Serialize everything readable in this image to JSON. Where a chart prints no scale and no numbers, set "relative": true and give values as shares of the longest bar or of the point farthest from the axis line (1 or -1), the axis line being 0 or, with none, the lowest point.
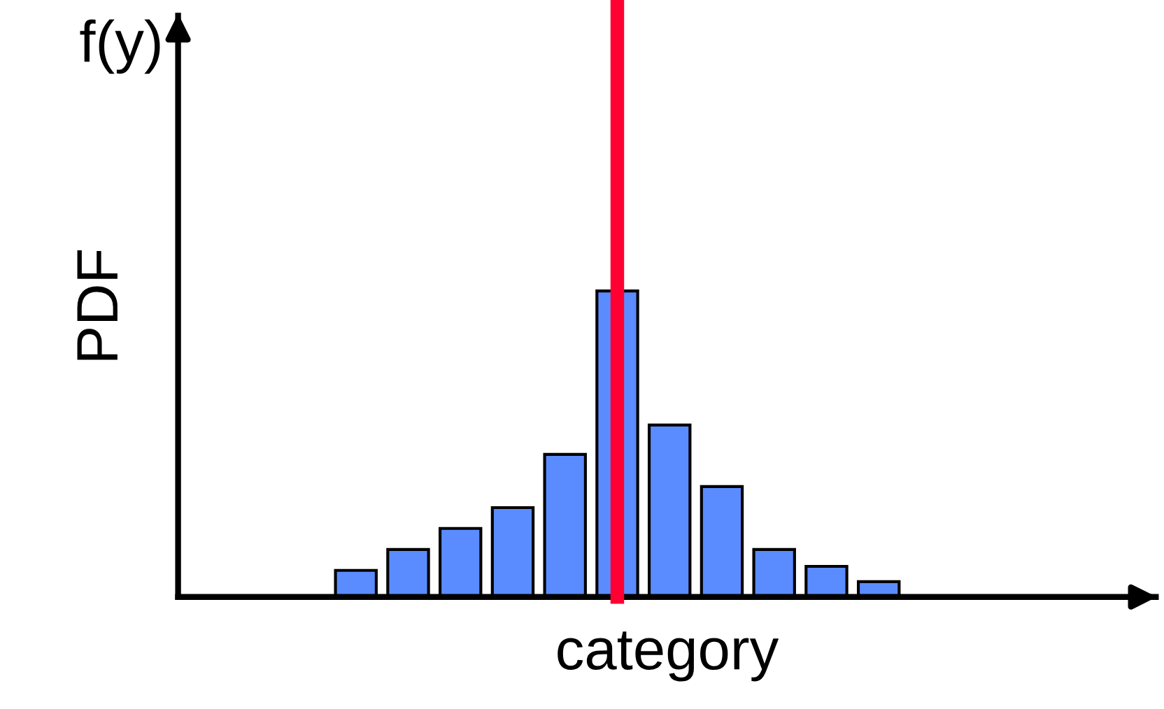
{
  "chart_data": {
    "type": "bar",
    "relative": true,
    "xlabel": "category",
    "ylabel": "PDF",
    "annotations": [
      "f(y)"
    ],
    "categories": [
      null,
      null,
      null,
      null,
      null,
      null,
      null,
      null,
      null,
      null,
      null
    ],
    "values": [
      0.087,
      0.155,
      0.224,
      0.292,
      0.466,
      1,
      0.562,
      0.361,
      0.155,
      0.1,
      0.05
    ],
    "color": "#5b8cff",
    "grid": false,
    "legend": false
  }
}
